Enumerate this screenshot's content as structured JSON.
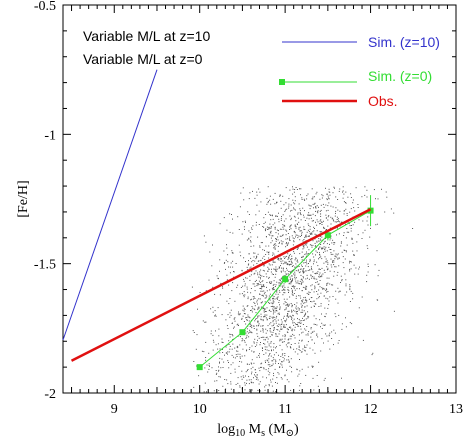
{
  "chart_data": {
    "type": "scatter",
    "xlabel_main": "log",
    "xlabel_sub": "10",
    "xlabel_var": " M",
    "xlabel_var_sub": "s",
    "xlabel_unit": " (M",
    "xlabel_unit_sub": "⊙",
    "xlabel_close": ")",
    "ylabel": "[Fe/H]",
    "xlim": [
      8.4,
      13.0
    ],
    "ylim": [
      -2.0,
      -0.5
    ],
    "xticks": [
      9,
      10,
      11,
      12,
      13
    ],
    "xtick_labels": [
      "9",
      "10",
      "11",
      "12",
      "13"
    ],
    "yticks": [
      -0.5,
      -1.0,
      -1.5,
      -2.0
    ],
    "ytick_labels": [
      "-0.5",
      "-1",
      "-1.5",
      "-2"
    ],
    "annotations": [
      "Variable M/L at z=10",
      "Variable M/L at z=0"
    ],
    "legend_placement": "top-right",
    "series": [
      {
        "name": "Sim. (z=10)",
        "kind": "line",
        "color": "#3333cc",
        "x": [
          8.4,
          9.5
        ],
        "y": [
          -1.795,
          -0.75
        ]
      },
      {
        "name": "Sim. (z=0)",
        "kind": "line-markers",
        "color": "#33dd33",
        "x": [
          10.0,
          10.5,
          11.0,
          11.5,
          12.0
        ],
        "y": [
          -1.9,
          -1.765,
          -1.56,
          -1.39,
          -1.295
        ],
        "yerr": [
          0.01,
          0.01,
          0.015,
          0.02,
          0.06
        ]
      },
      {
        "name": "Obs.",
        "kind": "line",
        "color": "#e01010",
        "x": [
          8.5,
          12.0
        ],
        "y": [
          -1.875,
          -1.29
        ]
      }
    ],
    "scatter_cloud": {
      "color": "#555555",
      "x_range": [
        9.9,
        12.6
      ],
      "y_range": [
        -2.0,
        -1.2
      ]
    }
  }
}
